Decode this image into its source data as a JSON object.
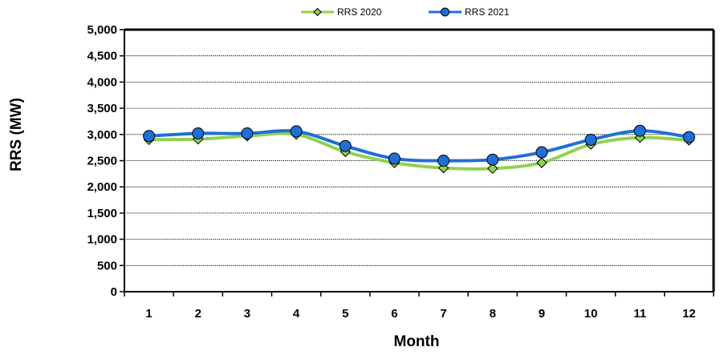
{
  "chart_data": {
    "type": "line",
    "title": "",
    "xlabel": "Month",
    "ylabel": "RRS (MW)",
    "categories": [
      "1",
      "2",
      "3",
      "4",
      "5",
      "6",
      "7",
      "8",
      "9",
      "10",
      "11",
      "12"
    ],
    "ylim": [
      0,
      5000
    ],
    "yticks": [
      0,
      500,
      1000,
      1500,
      2000,
      2500,
      3000,
      3500,
      4000,
      4500,
      5000
    ],
    "ytick_labels": [
      "0",
      "500",
      "1,000",
      "1,500",
      "2,000",
      "2,500",
      "3,000",
      "3,500",
      "4,000",
      "4,500",
      "5,000"
    ],
    "grid": "horizontal",
    "smoothed": true,
    "legend_position": "top-center",
    "series": [
      {
        "name": "RRS 2020",
        "color": "#92D050",
        "marker": "diamond",
        "values": [
          2900,
          2910,
          2970,
          3000,
          2670,
          2460,
          2360,
          2350,
          2460,
          2810,
          2940,
          2890
        ]
      },
      {
        "name": "RRS 2021",
        "color": "#1F6FD6",
        "marker": "circle",
        "values": [
          2970,
          3020,
          3020,
          3060,
          2780,
          2540,
          2500,
          2520,
          2660,
          2900,
          3070,
          2950
        ]
      }
    ]
  }
}
